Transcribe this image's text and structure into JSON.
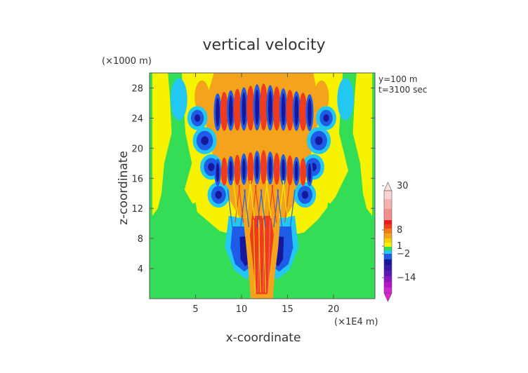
{
  "chart_data": {
    "type": "heatmap",
    "title": "vertical velocity",
    "xlabel": "x-coordinate",
    "ylabel": "z-coordinate",
    "x_multiplier_label": "(×1E4 m)",
    "y_multiplier_label": "(×1000 m)",
    "annotations": [
      "y=100 m",
      "t=3100 sec"
    ],
    "x_ticks": [
      5,
      10,
      15,
      20
    ],
    "y_ticks": [
      4,
      8,
      12,
      16,
      20,
      24,
      28
    ],
    "xlim": [
      0,
      24.5
    ],
    "ylim": [
      0,
      30
    ],
    "colorbar": {
      "tick_labels": [
        "30",
        "8",
        "1",
        "−2",
        "−14"
      ],
      "tick_values": [
        30,
        8,
        1,
        -2,
        -14
      ]
    }
  },
  "colors": {
    "background_zero": "#33dd55",
    "weak_positive": "#f7f300",
    "positive": "#f4a41c",
    "strong_positive": "#ef3a1c",
    "negative_weak": "#22c8f2",
    "negative": "#1e5be6",
    "strong_negative": "#17179e"
  }
}
